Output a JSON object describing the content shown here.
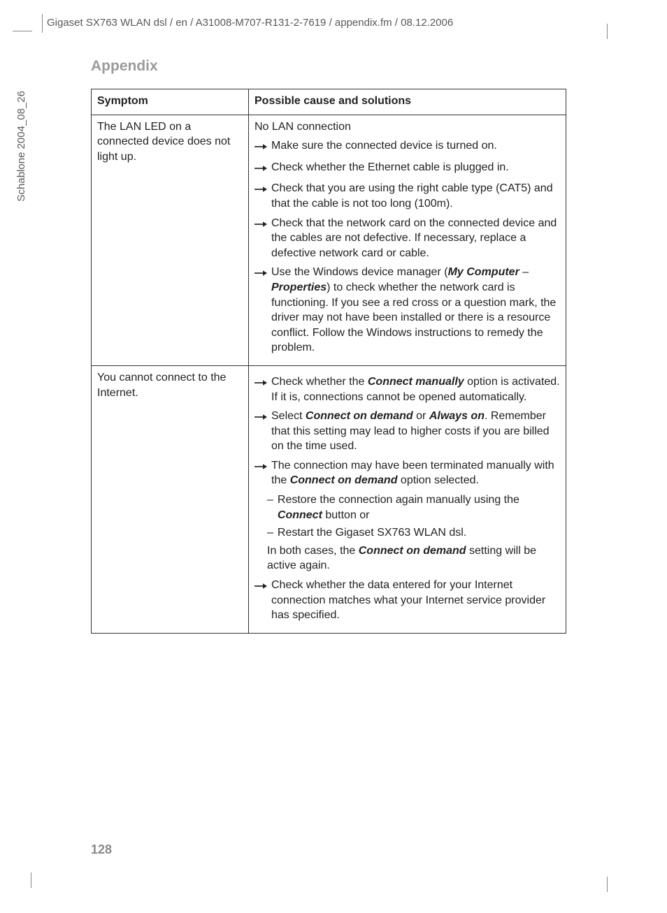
{
  "header_path": "Gigaset SX763 WLAN dsl / en / A31008-M707-R131-2-7619 / appendix.fm / 08.12.2006",
  "sidebar_label": "Schablone 2004_08_26",
  "section_title": "Appendix",
  "page_number": "128",
  "table": {
    "columns": [
      "Symptom",
      "Possible cause and solutions"
    ],
    "rows": [
      {
        "symptom": "The LAN LED on a connected device does not light up.",
        "cause": "No LAN connection",
        "solutions": [
          {
            "type": "arrow",
            "parts": [
              {
                "t": "Make sure the connected device is turned on."
              }
            ]
          },
          {
            "type": "arrow",
            "parts": [
              {
                "t": "Check whether the Ethernet cable is plugged in."
              }
            ]
          },
          {
            "type": "arrow",
            "parts": [
              {
                "t": "Check that you are using the right cable type (CAT5) and that the cable is not too long (100m)."
              }
            ]
          },
          {
            "type": "arrow",
            "parts": [
              {
                "t": "Check that the network card on the connected device and the cables are not defective. If necessary, replace a defective network card or cable."
              }
            ]
          },
          {
            "type": "arrow",
            "parts": [
              {
                "t": "Use the Windows device manager ("
              },
              {
                "bi": "My Computer"
              },
              {
                "t": " – "
              },
              {
                "bi": "Properties"
              },
              {
                "t": ") to check whether the network card is functioning. If you see a red cross or a question mark, the driver may not have been installed or there is a resource conflict. Follow the Windows instructions to remedy the problem."
              }
            ]
          }
        ]
      },
      {
        "symptom": "You cannot connect to the Internet.",
        "cause": "",
        "solutions": [
          {
            "type": "arrow",
            "parts": [
              {
                "t": "Check whether the "
              },
              {
                "bi": "Connect manually"
              },
              {
                "t": " option is activated. If it is, connections cannot be opened automatically."
              }
            ]
          },
          {
            "type": "arrow",
            "parts": [
              {
                "t": "Select "
              },
              {
                "bi": "Connect on demand"
              },
              {
                "t": " or "
              },
              {
                "bi": "Always on"
              },
              {
                "t": ". Remember that this setting may lead to higher costs if you are billed on the time used."
              }
            ]
          },
          {
            "type": "arrow",
            "parts": [
              {
                "t": "The connection may have been terminated manually with the "
              },
              {
                "bi": "Connect on demand"
              },
              {
                "t": " option selected."
              }
            ],
            "subs": [
              {
                "parts": [
                  {
                    "t": "Restore the connection again manually using the "
                  },
                  {
                    "bi": "Connect"
                  },
                  {
                    "t": " button or"
                  }
                ]
              },
              {
                "parts": [
                  {
                    "t": "Restart the Gigaset SX763 WLAN dsl."
                  }
                ]
              }
            ],
            "tail": [
              {
                "t": "In both cases, the "
              },
              {
                "bi": "Connect on demand"
              },
              {
                "t": " setting will be active again."
              }
            ]
          },
          {
            "type": "arrow",
            "parts": [
              {
                "t": "Check whether the data entered for your Internet connection matches what your Internet service provider has specified."
              }
            ]
          }
        ]
      }
    ]
  }
}
